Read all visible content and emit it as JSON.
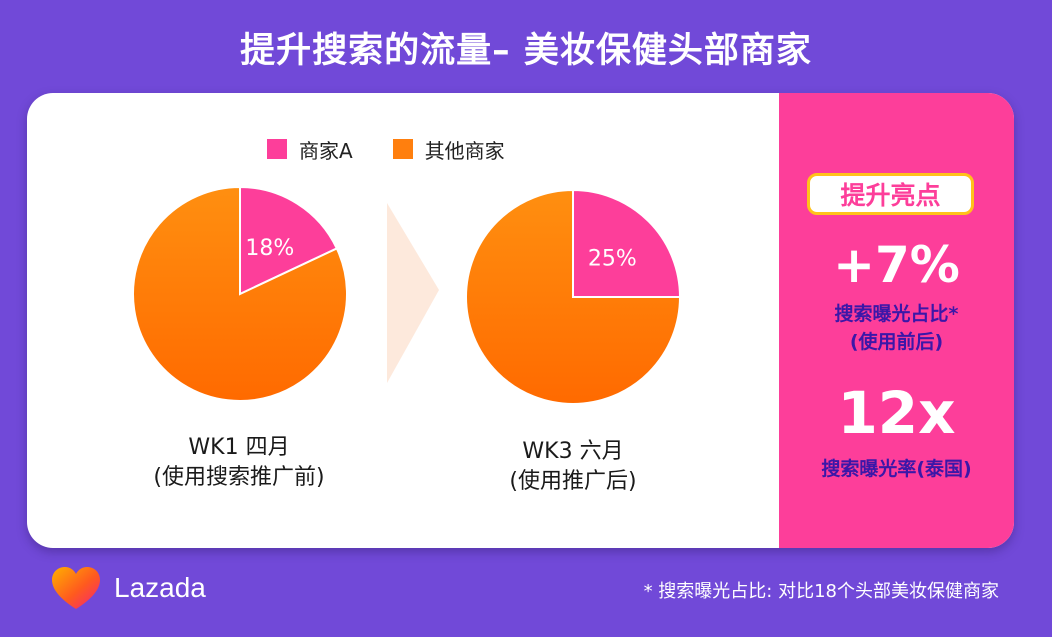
{
  "title": "提升搜索的流量– 美妆保健头部商家",
  "legend": [
    {
      "label": "商家A",
      "color": "#fd3e9a"
    },
    {
      "label": "其他商家",
      "color": "#ff7f0e"
    }
  ],
  "chart_data": [
    {
      "type": "pie",
      "caption_line1": "WK1 四月",
      "caption_line2": "(使用搜索推广前)",
      "slices": [
        {
          "label": "商家A",
          "value": 18,
          "display": "18%"
        },
        {
          "label": "其他商家",
          "value": 82,
          "display": ""
        }
      ]
    },
    {
      "type": "pie",
      "caption_line1": "WK3 六月",
      "caption_line2": "(使用推广后)",
      "slices": [
        {
          "label": "商家A",
          "value": 25,
          "display": "25%"
        },
        {
          "label": "其他商家",
          "value": 75,
          "display": ""
        }
      ]
    }
  ],
  "highlights": {
    "badge": "提升亮点",
    "stat1_value": "+7%",
    "stat1_line1": "搜索曝光占比*",
    "stat1_line2": "(使用前后)",
    "stat2_value": "12x",
    "stat2_line1": "搜索曝光率(泰国)"
  },
  "brand": {
    "name": "Lazada",
    "icon": "lazada-heart-logo"
  },
  "footnote": "* 搜索曝光占比: 对比18个头部美妆保健商家",
  "colors": {
    "background": "#7149d8",
    "accent_pink": "#fd3e9a",
    "accent_orange": "#ff7f0e",
    "badge_border": "#ffc21a",
    "sub_text": "#3b17a8"
  }
}
